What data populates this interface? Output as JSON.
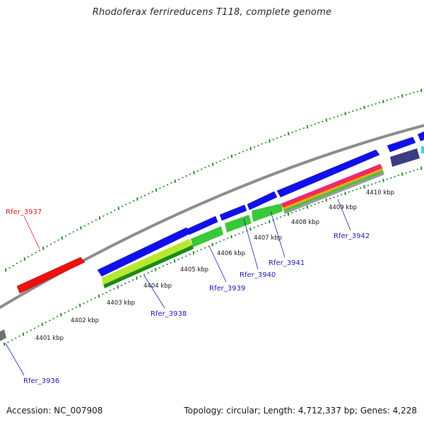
{
  "title": "Rhodoferax ferrireducens T118, complete genome",
  "footer": {
    "accession": "Accession: NC_007908",
    "summary": "Topology: circular; Length: 4,712,337 bp; Genes: 4,228"
  },
  "colors": {
    "backbone": "#8c8c8c",
    "tick": "#1f8a1f",
    "label_blue": "#1818b0",
    "label_red": "#d81818",
    "gene_blue": "#1010ee",
    "gene_red": "#ee1010",
    "gene_grey": "#707070",
    "gene_navy": "#3c3c80",
    "gene_cyan": "#30d8f0"
  },
  "scale_labels": [
    "4401 kbp",
    "4402 kbp",
    "4403 kbp",
    "4404 kbp",
    "4405 kbp",
    "4406 kbp",
    "4407 kbp",
    "4408 kbp",
    "4409 kbp",
    "4410 kbp"
  ],
  "gene_labels": [
    {
      "text": "Rfer_3936",
      "color": "blue"
    },
    {
      "text": "Rfer_3937",
      "color": "red"
    },
    {
      "text": "Rfer_3938",
      "color": "blue"
    },
    {
      "text": "Rfer_3939",
      "color": "blue"
    },
    {
      "text": "Rfer_3940",
      "color": "blue"
    },
    {
      "text": "Rfer_3941",
      "color": "blue"
    },
    {
      "text": "Rfer_3942",
      "color": "blue"
    }
  ]
}
